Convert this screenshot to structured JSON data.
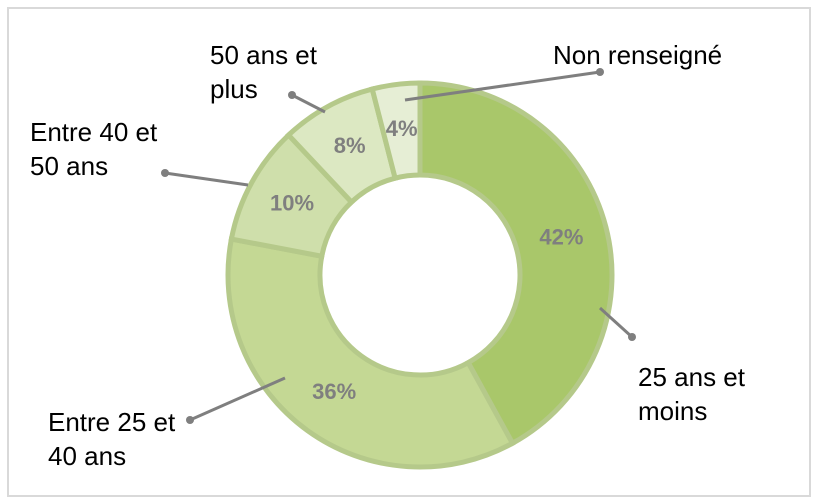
{
  "chart_data": {
    "type": "donut",
    "categories": [
      "25 ans et moins",
      "Entre 25 et 40 ans",
      "Entre 40 et 50 ans",
      "50 ans et plus",
      "Non renseigné"
    ],
    "values": [
      42,
      36,
      10,
      8,
      4
    ],
    "value_labels": [
      "42%",
      "36%",
      "10%",
      "8%",
      "4%"
    ],
    "colors": [
      "#a9c76a",
      "#c4d894",
      "#cfdfab",
      "#dce8c2",
      "#e6eed5"
    ]
  }
}
